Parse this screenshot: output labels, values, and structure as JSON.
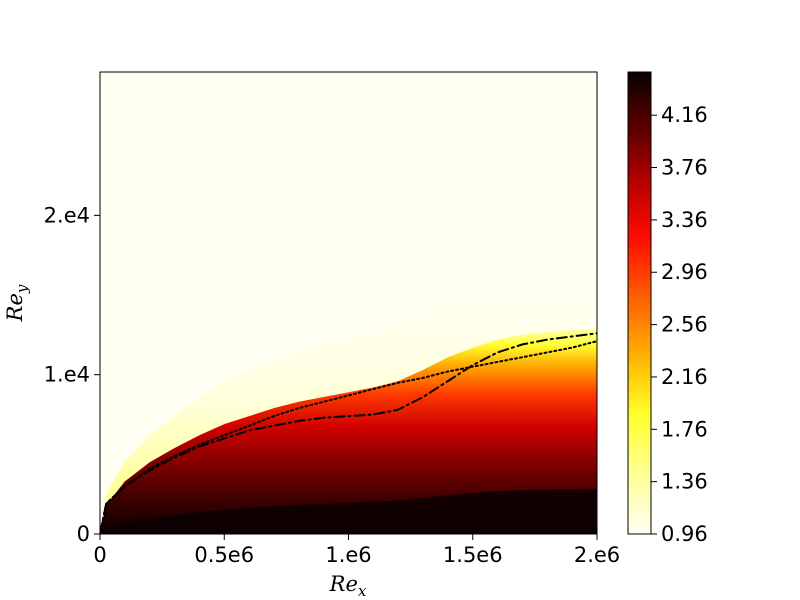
{
  "chart_data": {
    "type": "heatmap",
    "title": "",
    "xlabel": {
      "main": "Re",
      "sub": "x"
    },
    "ylabel": {
      "main": "Re",
      "sub": "y"
    },
    "xlim": [
      0,
      2000000
    ],
    "ylim": [
      0,
      29000
    ],
    "x_ticks": [
      {
        "value": 0,
        "label": "0"
      },
      {
        "value": 500000,
        "label": "0.5e6"
      },
      {
        "value": 1000000,
        "label": "1.e6"
      },
      {
        "value": 1500000,
        "label": "1.5e6"
      },
      {
        "value": 2000000,
        "label": "2.e6"
      }
    ],
    "y_ticks": [
      {
        "value": 0,
        "label": "0"
      },
      {
        "value": 10000,
        "label": "1.e4"
      },
      {
        "value": 20000,
        "label": "2.e4"
      }
    ],
    "colormap": "hot_r",
    "colorbar": {
      "range": [
        0.96,
        4.49
      ],
      "ticks": [
        "0.96",
        "1.36",
        "1.76",
        "2.16",
        "2.56",
        "2.96",
        "3.36",
        "3.76",
        "4.16"
      ]
    },
    "field_edge": {
      "x": [
        0,
        25000,
        100000,
        200000,
        300000,
        400000,
        500000,
        600000,
        700000,
        800000,
        900000,
        1000000,
        1100000,
        1200000,
        1300000,
        1400000,
        1500000,
        1600000,
        1700000,
        1800000,
        1900000,
        2000000
      ],
      "y": [
        0,
        1800,
        3300,
        4500,
        5400,
        6200,
        6900,
        7400,
        7900,
        8300,
        8600,
        8900,
        9200,
        9600,
        10300,
        11100,
        11700,
        12200,
        12500,
        12700,
        12800,
        12900
      ]
    },
    "series": [
      {
        "style": "dash-dot",
        "x": [
          0,
          25000,
          100000,
          200000,
          300000,
          400000,
          500000,
          600000,
          700000,
          800000,
          900000,
          1000000,
          1100000,
          1200000,
          1300000,
          1400000,
          1450000,
          1500000,
          1600000,
          1700000,
          1800000,
          1900000,
          2000000
        ],
        "y": [
          0,
          1900,
          3000,
          4000,
          4800,
          5500,
          6000,
          6500,
          6800,
          7100,
          7300,
          7400,
          7500,
          7800,
          8600,
          9600,
          10100,
          10600,
          11400,
          11900,
          12200,
          12400,
          12600
        ]
      },
      {
        "style": "dotted",
        "x": [
          0,
          25000,
          100000,
          200000,
          300000,
          400000,
          500000,
          600000,
          700000,
          800000,
          900000,
          1000000,
          1100000,
          1200000,
          1300000,
          1400000,
          1500000,
          1600000,
          1700000,
          1800000,
          1900000,
          2000000
        ],
        "y": [
          0,
          1900,
          3000,
          4100,
          4900,
          5600,
          6200,
          6800,
          7400,
          7900,
          8300,
          8700,
          9100,
          9500,
          9800,
          10200,
          10500,
          10800,
          11100,
          11400,
          11700,
          12100
        ]
      }
    ]
  }
}
